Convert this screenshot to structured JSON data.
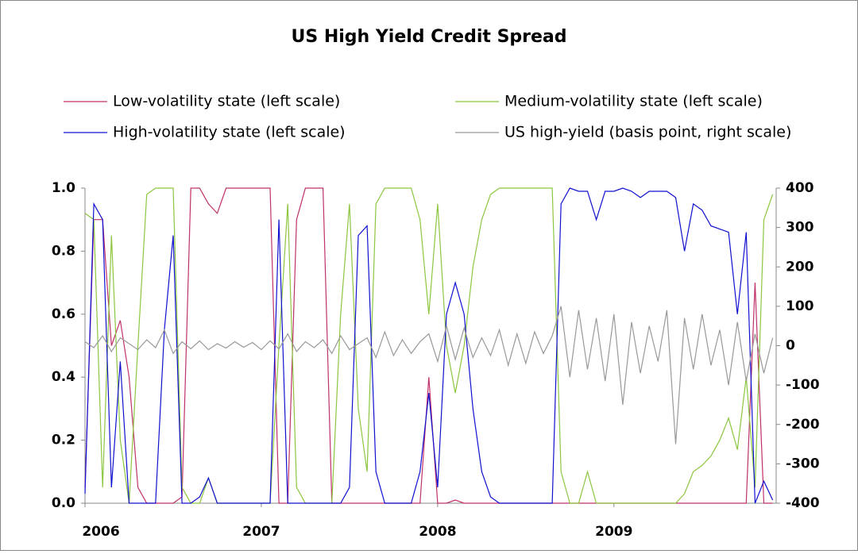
{
  "chart_data": {
    "type": "line",
    "title": "US High Yield Credit Spread",
    "legend": "top",
    "x": [
      2006,
      2006.05,
      2006.1,
      2006.15,
      2006.2,
      2006.25,
      2006.3,
      2006.35,
      2006.4,
      2006.45,
      2006.5,
      2006.55,
      2006.6,
      2006.65,
      2006.7,
      2006.75,
      2006.8,
      2006.85,
      2006.9,
      2006.95,
      2007,
      2007.05,
      2007.1,
      2007.15,
      2007.2,
      2007.25,
      2007.3,
      2007.35,
      2007.4,
      2007.45,
      2007.5,
      2007.55,
      2007.6,
      2007.65,
      2007.7,
      2007.75,
      2007.8,
      2007.85,
      2007.9,
      2007.95,
      2008,
      2008.05,
      2008.1,
      2008.15,
      2008.2,
      2008.25,
      2008.3,
      2008.35,
      2008.4,
      2008.45,
      2008.5,
      2008.55,
      2008.6,
      2008.65,
      2008.7,
      2008.75,
      2008.8,
      2008.85,
      2008.9,
      2008.95,
      2009,
      2009.05,
      2009.1,
      2009.15,
      2009.2,
      2009.25,
      2009.3,
      2009.35,
      2009.4,
      2009.45,
      2009.5,
      2009.55,
      2009.6,
      2009.65,
      2009.7,
      2009.75,
      2009.8,
      2009.85,
      2009.9
    ],
    "xlim": [
      2006,
      2009.92
    ],
    "xticks": [
      2006,
      2007,
      2008,
      2009
    ],
    "ylim": [
      0,
      1
    ],
    "yticks": [
      {
        "value": 0,
        "label": "0.0"
      },
      0.2,
      0.4,
      0.6,
      0.8,
      {
        "value": 1,
        "label": "1.0"
      }
    ],
    "y2lim": [
      -400,
      400
    ],
    "y2ticks": [
      -400,
      -300,
      -200,
      -100,
      0,
      100,
      200,
      300,
      400
    ],
    "series": [
      {
        "name": "Low-volatility state (left scale)",
        "color": "#c0306a",
        "values": [
          0.05,
          0.9,
          0.9,
          0.5,
          0.58,
          0.4,
          0.05,
          0,
          0,
          0,
          0,
          0.02,
          1,
          1,
          0.95,
          0.92,
          1,
          1,
          1,
          1,
          1,
          1,
          0,
          0,
          0.9,
          1,
          1,
          1,
          0,
          0,
          0,
          0,
          0,
          0,
          0,
          0,
          0,
          0,
          0,
          0.4,
          0,
          0,
          0.01,
          0,
          0,
          0,
          0,
          0,
          0,
          0,
          0,
          0,
          0,
          0,
          0,
          0,
          0,
          0,
          0,
          0,
          0,
          0,
          0,
          0,
          0,
          0,
          0,
          0,
          0,
          0,
          0,
          0,
          0,
          0,
          0,
          0,
          0.7,
          0,
          0
        ]
      },
      {
        "name": "Medium-volatility state (left scale)",
        "color": "#8cc63f",
        "values": [
          0.92,
          0.9,
          0.05,
          0.85,
          0.2,
          0,
          0.5,
          0.98,
          1,
          1,
          1,
          0.05,
          0,
          0,
          0.08,
          0,
          0,
          0,
          0,
          0,
          0,
          0,
          0.5,
          0.95,
          0.05,
          0,
          0,
          0,
          0,
          0.6,
          0.95,
          0.3,
          0.1,
          0.95,
          1,
          1,
          1,
          1,
          0.9,
          0.6,
          0.95,
          0.5,
          0.35,
          0.5,
          0.75,
          0.9,
          0.98,
          1,
          1,
          1,
          1,
          1,
          1,
          1,
          0.1,
          0,
          0,
          0.1,
          0,
          0,
          0,
          0,
          0,
          0,
          0,
          0,
          0,
          0,
          0.03,
          0.1,
          0.12,
          0.15,
          0.2,
          0.27,
          0.17,
          0.4,
          0.05,
          0.9,
          0.98
        ]
      },
      {
        "name": "High-volatility state (left scale)",
        "color": "#1010d0",
        "values": [
          0.03,
          0.95,
          0.9,
          0.05,
          0.45,
          0,
          0,
          0,
          0,
          0.55,
          0.85,
          0,
          0,
          0.02,
          0.08,
          0,
          0,
          0,
          0,
          0,
          0,
          0,
          0.9,
          0,
          0,
          0,
          0,
          0,
          0,
          0,
          0.05,
          0.85,
          0.88,
          0.1,
          0,
          0,
          0,
          0,
          0.1,
          0.35,
          0.05,
          0.6,
          0.7,
          0.6,
          0.3,
          0.1,
          0.02,
          0,
          0,
          0,
          0,
          0,
          0,
          0,
          0.95,
          1,
          0.99,
          0.99,
          0.9,
          0.99,
          0.99,
          1,
          0.99,
          0.97,
          0.99,
          0.99,
          0.99,
          0.97,
          0.8,
          0.95,
          0.93,
          0.88,
          0.87,
          0.86,
          0.6,
          0.86,
          0,
          0.07,
          0.01
        ]
      },
      {
        "name": "US high-yield (basis point, right scale)",
        "color": "#999999",
        "axis": "y2",
        "values": [
          10,
          -5,
          25,
          -15,
          20,
          5,
          -10,
          15,
          -5,
          40,
          -20,
          10,
          -8,
          12,
          -10,
          5,
          -6,
          10,
          -4,
          8,
          -10,
          12,
          -8,
          30,
          -15,
          10,
          -5,
          15,
          -20,
          25,
          -10,
          5,
          20,
          -30,
          35,
          -25,
          15,
          -20,
          10,
          30,
          -40,
          50,
          -35,
          45,
          -30,
          20,
          -25,
          40,
          -50,
          30,
          -45,
          35,
          -20,
          25,
          100,
          -80,
          90,
          -60,
          70,
          -90,
          80,
          -150,
          60,
          -70,
          50,
          -40,
          90,
          -250,
          70,
          -60,
          80,
          -50,
          40,
          -100,
          60,
          -90,
          30,
          -70,
          20
        ]
      }
    ]
  }
}
